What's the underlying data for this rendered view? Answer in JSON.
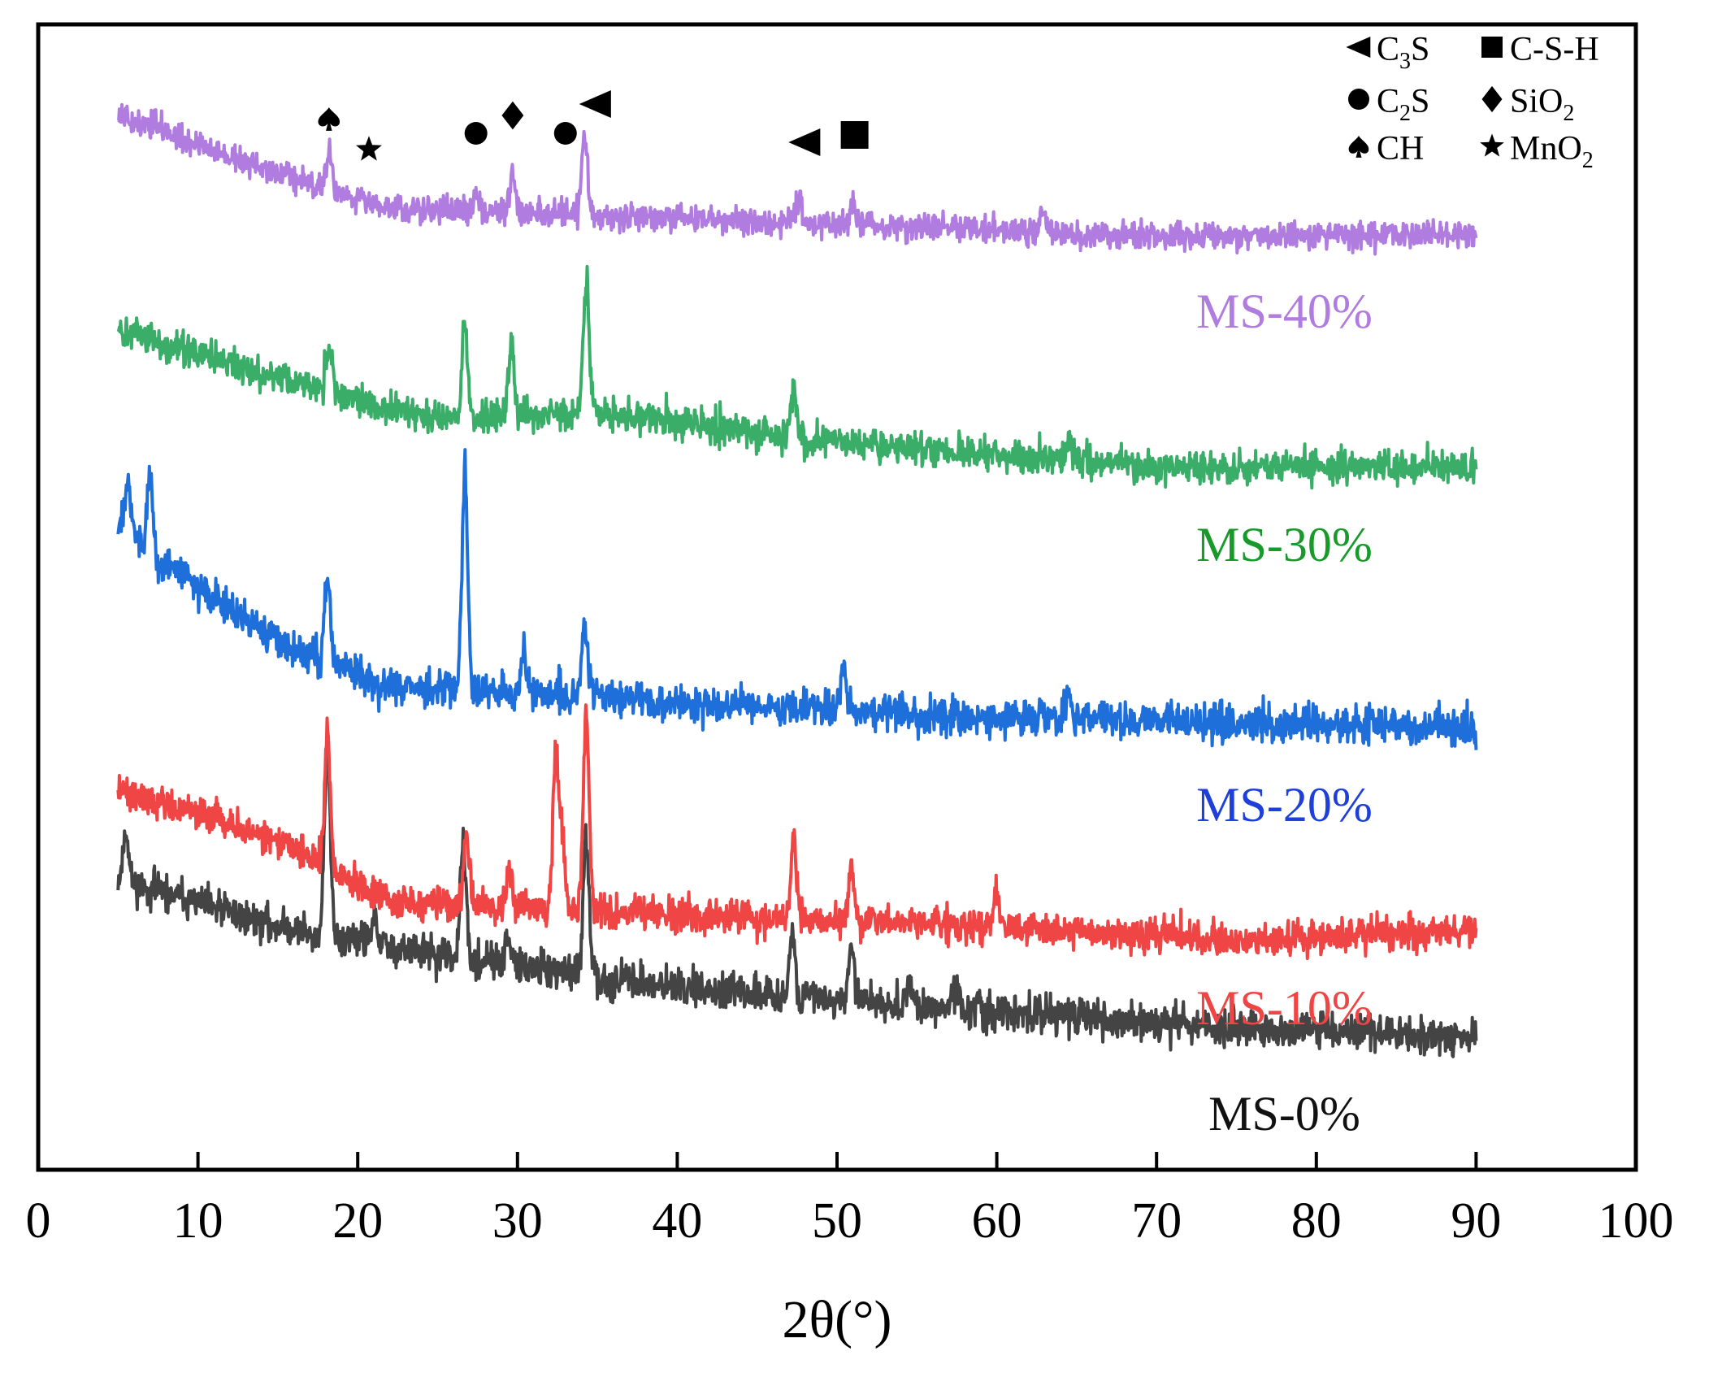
{
  "chart_data": {
    "type": "line",
    "title": "",
    "xlabel": "2θ(°)",
    "ylabel": "",
    "xlim": [
      0,
      100
    ],
    "xticks": [
      0,
      10,
      20,
      30,
      40,
      50,
      60,
      70,
      80,
      90,
      100
    ],
    "xtick_labels": [
      "0",
      "10",
      "20",
      "30",
      "40",
      "50",
      "60",
      "70",
      "80",
      "90",
      "100"
    ],
    "y_axis_ticks": "none",
    "y_units": "intensity (a.u.), series vertically offset",
    "x_range_measured": [
      5,
      90
    ],
    "series": [
      {
        "name": "MS-0%",
        "color": "#444444",
        "label_color": "#111111",
        "baseline": [
          [
            5,
            1.15
          ],
          [
            15,
            0.92
          ],
          [
            25,
            0.78
          ],
          [
            40,
            0.62
          ],
          [
            60,
            0.5
          ],
          [
            75,
            0.42
          ],
          [
            90,
            0.38
          ]
        ],
        "noise": 0.055,
        "seed": 11,
        "peaks": [
          [
            5.5,
            0.25
          ],
          [
            18.1,
            0.9
          ],
          [
            21.0,
            0.12
          ],
          [
            26.6,
            0.55
          ],
          [
            29.4,
            0.12
          ],
          [
            34.3,
            0.65
          ],
          [
            47.2,
            0.3
          ],
          [
            50.9,
            0.25
          ],
          [
            54.5,
            0.12
          ],
          [
            57.5,
            0.1
          ]
        ]
      },
      {
        "name": "MS-10%",
        "color": "#f04545",
        "label_color": "#f04545",
        "baseline": [
          [
            5,
            1.6
          ],
          [
            15,
            1.35
          ],
          [
            22,
            1.05
          ],
          [
            28,
            1.02
          ],
          [
            40,
            0.98
          ],
          [
            60,
            0.92
          ],
          [
            75,
            0.85
          ],
          [
            90,
            0.9
          ]
        ],
        "noise": 0.05,
        "seed": 22,
        "peaks": [
          [
            18.1,
            0.6
          ],
          [
            26.8,
            0.35
          ],
          [
            29.5,
            0.2
          ],
          [
            32.4,
            0.75
          ],
          [
            32.8,
            0.35
          ],
          [
            34.3,
            0.95
          ],
          [
            47.3,
            0.4
          ],
          [
            50.9,
            0.25
          ],
          [
            60.0,
            0.15
          ]
        ]
      },
      {
        "name": "MS-20%",
        "color": "#1e6fd9",
        "label_color": "#1e3fd9",
        "baseline": [
          [
            5,
            2.9
          ],
          [
            8,
            2.7
          ],
          [
            15,
            2.32
          ],
          [
            22,
            2.1
          ],
          [
            35,
            2.05
          ],
          [
            50,
            1.98
          ],
          [
            70,
            1.93
          ],
          [
            90,
            1.9
          ]
        ],
        "noise": 0.055,
        "seed": 33,
        "peaks": [
          [
            5.6,
            0.3
          ],
          [
            7.0,
            0.35
          ],
          [
            18.1,
            0.45
          ],
          [
            26.7,
            1.05
          ],
          [
            30.4,
            0.2
          ],
          [
            34.2,
            0.35
          ],
          [
            50.4,
            0.2
          ],
          [
            64.5,
            0.15
          ]
        ]
      },
      {
        "name": "MS-30%",
        "color": "#3aae68",
        "label_color": "#189a2a",
        "baseline": [
          [
            5,
            3.85
          ],
          [
            15,
            3.62
          ],
          [
            25,
            3.42
          ],
          [
            35,
            3.45
          ],
          [
            50,
            3.3
          ],
          [
            70,
            3.18
          ],
          [
            90,
            3.18
          ]
        ],
        "noise": 0.05,
        "seed": 44,
        "peaks": [
          [
            18.2,
            0.25
          ],
          [
            26.7,
            0.45
          ],
          [
            29.6,
            0.35
          ],
          [
            34.3,
            0.65
          ],
          [
            47.3,
            0.25
          ],
          [
            64.5,
            0.12
          ]
        ]
      },
      {
        "name": "MS-40%",
        "color": "#b07ce0",
        "label_color": "#b07ce0",
        "baseline": [
          [
            5,
            4.92
          ],
          [
            15,
            4.62
          ],
          [
            22,
            4.45
          ],
          [
            35,
            4.42
          ],
          [
            50,
            4.38
          ],
          [
            70,
            4.32
          ],
          [
            90,
            4.33
          ]
        ],
        "noise": 0.04,
        "seed": 55,
        "peaks": [
          [
            18.2,
            0.2
          ],
          [
            27.4,
            0.1
          ],
          [
            29.7,
            0.2
          ],
          [
            34.2,
            0.38
          ],
          [
            47.6,
            0.12
          ],
          [
            51.0,
            0.1
          ],
          [
            62.8,
            0.12
          ]
        ]
      }
    ],
    "series_labels_x": 78,
    "phase_markers": [
      {
        "symbol": "spade",
        "x": 18.2,
        "phase": "CH"
      },
      {
        "symbol": "star",
        "x": 20.7,
        "phase": "MnO2"
      },
      {
        "symbol": "circle",
        "x": 27.4,
        "phase": "C2S"
      },
      {
        "symbol": "diamond",
        "x": 29.7,
        "phase": "SiO2"
      },
      {
        "symbol": "circle",
        "x": 33.0,
        "phase": "C2S"
      },
      {
        "symbol": "triangle-left",
        "x": 34.9,
        "phase": "C3S"
      },
      {
        "symbol": "triangle-left",
        "x": 48.0,
        "phase": "C3S"
      },
      {
        "symbol": "square",
        "x": 51.1,
        "phase": "C-S-H"
      }
    ],
    "legend": {
      "position": "top-right",
      "items": [
        {
          "symbol": "triangle-left",
          "base": "C",
          "sub": "3",
          "rest": "S"
        },
        {
          "symbol": "square",
          "base": "C-S-H",
          "sub": "",
          "rest": ""
        },
        {
          "symbol": "circle",
          "base": "C",
          "sub": "2",
          "rest": "S"
        },
        {
          "symbol": "diamond",
          "base": "SiO",
          "sub": "2",
          "rest": ""
        },
        {
          "symbol": "spade",
          "base": "CH",
          "sub": "",
          "rest": ""
        },
        {
          "symbol": "star",
          "base": "MnO",
          "sub": "2",
          "rest": ""
        }
      ]
    }
  }
}
